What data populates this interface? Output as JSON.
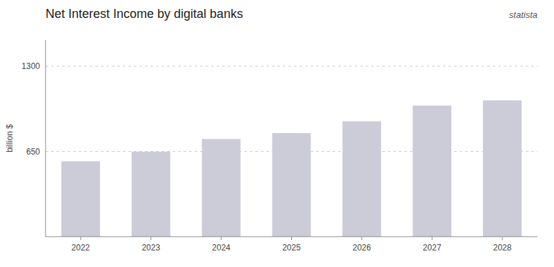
{
  "chart_data": {
    "type": "bar",
    "title": "Net Interest Income by digital banks",
    "y_label": "billion $",
    "annotations": [
      "statista"
    ],
    "categories": [
      "2022",
      "2023",
      "2024",
      "2025",
      "2026",
      "2027",
      "2028"
    ],
    "values": [
      575,
      648,
      745,
      790,
      880,
      1000,
      1040
    ],
    "color": "#ccccd8",
    "ylim": [
      0,
      1500
    ],
    "yticks": [
      650,
      1300
    ],
    "grid": true
  }
}
